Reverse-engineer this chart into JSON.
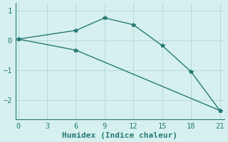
{
  "line1_x": [
    0,
    6,
    9,
    12,
    15,
    18,
    21
  ],
  "line1_y": [
    0.04,
    0.33,
    0.75,
    0.52,
    -0.18,
    -1.05,
    -2.35
  ],
  "line2_x": [
    0,
    6,
    21
  ],
  "line2_y": [
    0.04,
    -0.33,
    -2.35
  ],
  "line_color": "#267a72",
  "bg_color": "#d6f0f0",
  "grid_color": "#b8d8d8",
  "spine_color": "#267a72",
  "xlabel": "Humidex (Indice chaleur)",
  "xlim": [
    -0.3,
    21.5
  ],
  "ylim": [
    -2.65,
    1.25
  ],
  "xticks": [
    0,
    3,
    6,
    9,
    12,
    15,
    18,
    21
  ],
  "yticks": [
    -2,
    -1,
    0,
    1
  ],
  "marker": "*",
  "markersize": 4,
  "linewidth": 1.0,
  "tick_labelsize": 7.5,
  "xlabel_fontsize": 8
}
